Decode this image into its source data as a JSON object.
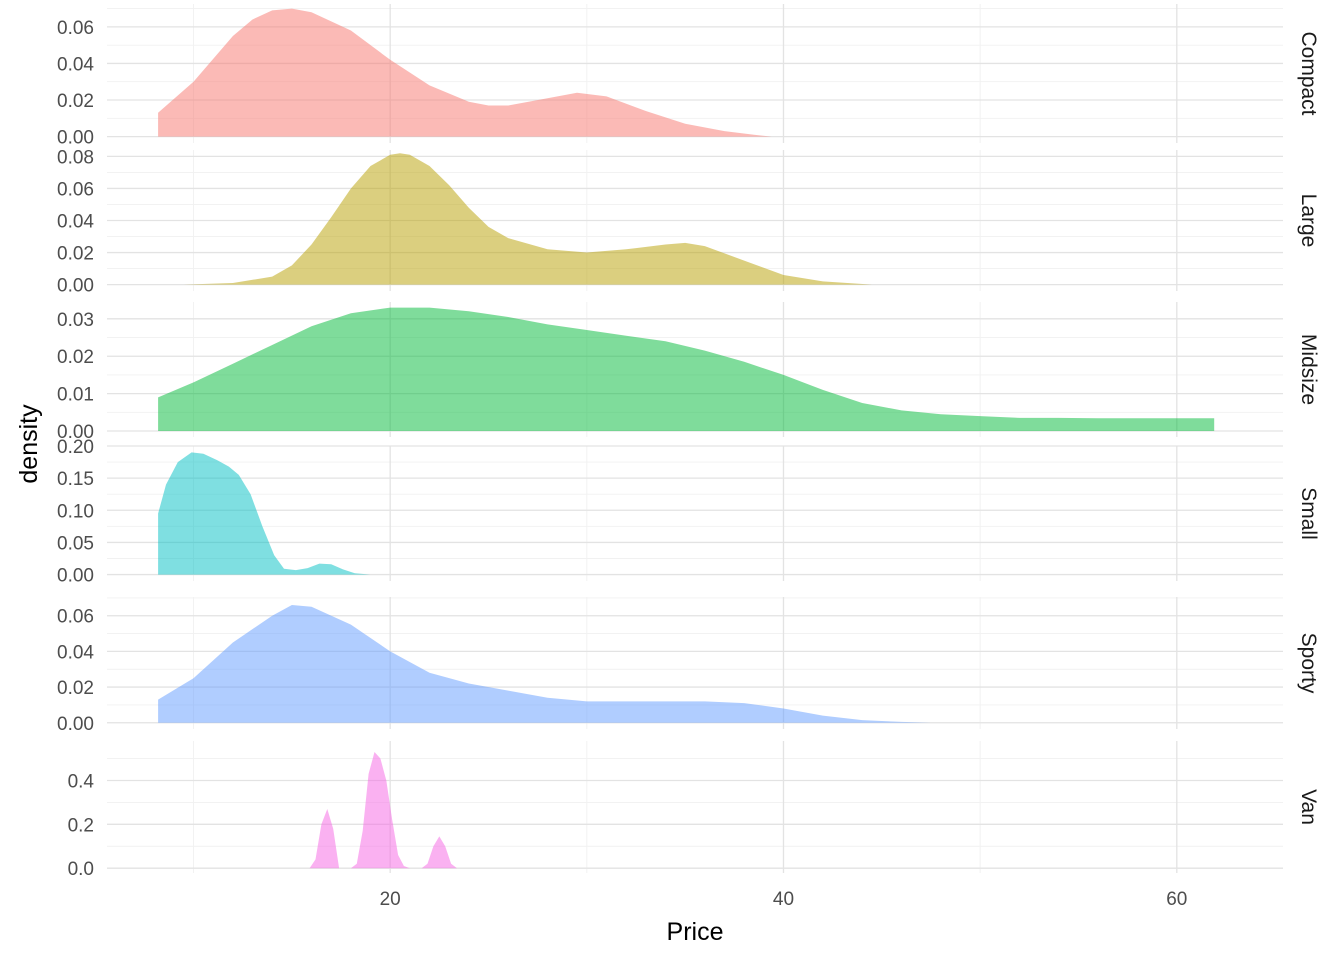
{
  "chart_data": {
    "type": "area",
    "subtype": "faceted density",
    "title": "",
    "xlabel": "Price",
    "ylabel": "density",
    "xlim": [
      5.6,
      65.4
    ],
    "x_ticks": [
      {
        "value": 20,
        "label": "20"
      },
      {
        "value": 40,
        "label": "40"
      },
      {
        "value": 60,
        "label": "60"
      }
    ],
    "x_minor_ticks": [
      10,
      30,
      50
    ],
    "grid": true,
    "legend": "none",
    "fill_opacity": 0.5,
    "facets": [
      {
        "name": "Compact",
        "color": "#F8766D",
        "ylim": [
          -0.0035,
          0.0725
        ],
        "y_ticks": [
          {
            "value": 0.0,
            "label": "0.00"
          },
          {
            "value": 0.02,
            "label": "0.02"
          },
          {
            "value": 0.04,
            "label": "0.04"
          },
          {
            "value": 0.06,
            "label": "0.06"
          }
        ],
        "x": [
          8.2,
          10,
          12,
          13,
          14,
          15,
          16,
          18,
          20,
          22,
          24,
          25,
          26,
          28,
          29.5,
          31,
          33,
          35,
          37,
          38.5,
          39.4
        ],
        "y": [
          0.013,
          0.03,
          0.055,
          0.064,
          0.069,
          0.07,
          0.068,
          0.058,
          0.042,
          0.028,
          0.019,
          0.017,
          0.017,
          0.021,
          0.024,
          0.022,
          0.014,
          0.007,
          0.003,
          0.001,
          0.0
        ]
      },
      {
        "name": "Large",
        "color": "#B79F00",
        "ylim": [
          -0.004,
          0.084
        ],
        "y_ticks": [
          {
            "value": 0.0,
            "label": "0.00"
          },
          {
            "value": 0.02,
            "label": "0.02"
          },
          {
            "value": 0.04,
            "label": "0.04"
          },
          {
            "value": 0.06,
            "label": "0.06"
          },
          {
            "value": 0.08,
            "label": "0.08"
          }
        ],
        "x": [
          9.5,
          12,
          14,
          15,
          16,
          17,
          18,
          19,
          20,
          20.5,
          21,
          22,
          23,
          24,
          25,
          26,
          28,
          30,
          32,
          34,
          35,
          36,
          38,
          40,
          42,
          44.5
        ],
        "y": [
          0.0,
          0.001,
          0.005,
          0.012,
          0.025,
          0.042,
          0.06,
          0.074,
          0.081,
          0.082,
          0.081,
          0.074,
          0.062,
          0.048,
          0.036,
          0.029,
          0.022,
          0.02,
          0.022,
          0.025,
          0.026,
          0.024,
          0.015,
          0.006,
          0.002,
          0.0
        ]
      },
      {
        "name": "Midsize",
        "color": "#00BA38",
        "ylim": [
          -0.0016,
          0.0345
        ],
        "y_ticks": [
          {
            "value": 0.0,
            "label": "0.00"
          },
          {
            "value": 0.01,
            "label": "0.01"
          },
          {
            "value": 0.02,
            "label": "0.02"
          },
          {
            "value": 0.03,
            "label": "0.03"
          }
        ],
        "x": [
          8.2,
          10,
          12,
          14,
          16,
          18,
          20,
          22,
          24,
          26,
          28,
          30,
          32,
          34,
          36,
          38,
          40,
          42,
          44,
          46,
          48,
          50,
          52,
          54,
          56,
          58,
          60,
          61.9
        ],
        "y": [
          0.009,
          0.013,
          0.018,
          0.023,
          0.028,
          0.0315,
          0.033,
          0.033,
          0.032,
          0.0305,
          0.0285,
          0.027,
          0.0255,
          0.024,
          0.0215,
          0.0185,
          0.015,
          0.011,
          0.0075,
          0.0055,
          0.0045,
          0.004,
          0.0035,
          0.0035,
          0.0034,
          0.0034,
          0.0034,
          0.0034
        ]
      },
      {
        "name": "Small",
        "color": "#00BFC4",
        "ylim": [
          -0.01,
          0.2
        ],
        "y_ticks": [
          {
            "value": 0.0,
            "label": "0.00"
          },
          {
            "value": 0.05,
            "label": "0.05"
          },
          {
            "value": 0.1,
            "label": "0.10"
          },
          {
            "value": 0.15,
            "label": "0.15"
          },
          {
            "value": 0.2,
            "label": "0.20"
          }
        ],
        "x": [
          8.2,
          8.6,
          9.2,
          9.9,
          10.5,
          11.2,
          11.8,
          12.3,
          12.9,
          13.5,
          14.1,
          14.6,
          15.2,
          15.8,
          16.4,
          17,
          17.6,
          18.2,
          19.0
        ],
        "y": [
          0.095,
          0.14,
          0.175,
          0.19,
          0.188,
          0.178,
          0.168,
          0.155,
          0.125,
          0.075,
          0.03,
          0.009,
          0.007,
          0.01,
          0.017,
          0.016,
          0.008,
          0.002,
          0.0
        ]
      },
      {
        "name": "Sporty",
        "color": "#619CFF",
        "ylim": [
          -0.0035,
          0.0705
        ],
        "y_ticks": [
          {
            "value": 0.0,
            "label": "0.00"
          },
          {
            "value": 0.02,
            "label": "0.02"
          },
          {
            "value": 0.04,
            "label": "0.04"
          },
          {
            "value": 0.06,
            "label": "0.06"
          }
        ],
        "x": [
          8.2,
          10,
          12,
          14,
          15,
          16,
          18,
          20,
          22,
          24,
          26,
          28,
          30,
          32,
          34,
          36,
          38,
          40,
          42,
          44,
          46,
          47.5
        ],
        "y": [
          0.013,
          0.025,
          0.045,
          0.06,
          0.066,
          0.065,
          0.055,
          0.04,
          0.028,
          0.022,
          0.018,
          0.014,
          0.012,
          0.012,
          0.012,
          0.012,
          0.011,
          0.008,
          0.004,
          0.0015,
          0.0005,
          0.0
        ]
      },
      {
        "name": "Van",
        "color": "#F564E3",
        "ylim": [
          -0.022,
          0.58
        ],
        "y_ticks": [
          {
            "value": 0.0,
            "label": "0.0"
          },
          {
            "value": 0.2,
            "label": "0.2"
          },
          {
            "value": 0.4,
            "label": "0.4"
          }
        ],
        "x": [
          15.9,
          16.2,
          16.5,
          16.8,
          17.1,
          17.4,
          18.0,
          18.3,
          18.6,
          18.9,
          19.2,
          19.5,
          19.8,
          20.1,
          20.4,
          20.7,
          21.0,
          21.6,
          21.9,
          22.2,
          22.5,
          22.8,
          23.1,
          23.4
        ],
        "y": [
          0.0,
          0.04,
          0.2,
          0.27,
          0.18,
          0.0,
          0.0,
          0.02,
          0.17,
          0.43,
          0.53,
          0.5,
          0.4,
          0.22,
          0.06,
          0.01,
          0.0,
          0.0,
          0.02,
          0.1,
          0.145,
          0.1,
          0.02,
          0.0
        ]
      }
    ]
  }
}
